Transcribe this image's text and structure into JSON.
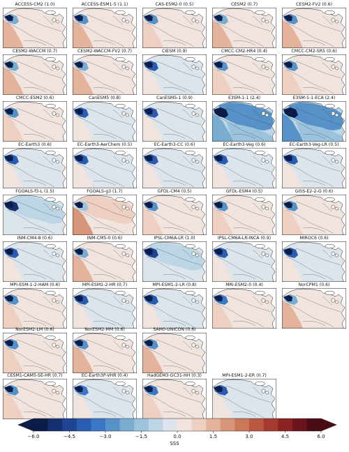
{
  "chart_data": {
    "type": "map-grid",
    "field": "SSS",
    "colorbar": {
      "label": "SSS",
      "range": [
        -6.0,
        6.0
      ],
      "step": 0.75,
      "ticks": [
        "−6.0",
        "−4.5",
        "−3.0",
        "−1.5",
        "0.0",
        "1.5",
        "3.0",
        "4.5",
        "6.0"
      ],
      "extend": "both",
      "colors": [
        "#0b1c48",
        "#16306f",
        "#1f4592",
        "#2a5db2",
        "#3a77c5",
        "#5692c8",
        "#78acd1",
        "#9bc4dc",
        "#bdd6e5",
        "#dce5ec",
        "#f1e4df",
        "#eed0c2",
        "#e3b39c",
        "#d7957a",
        "#cb7758",
        "#bb5740",
        "#a63a2e",
        "#8b2325",
        "#6b141c",
        "#4a0c14"
      ]
    },
    "panels": [
      {
        "title": "ACCESS-CM2 (1.0)",
        "bias": 0.5
      },
      {
        "title": "ACCESS-ESM1-5 (1.1)",
        "bias": 0.35
      },
      {
        "title": "CAS-ESM2-0 (0.5)",
        "bias": 0.1
      },
      {
        "title": "CESM2 (0.7)",
        "bias": 0.4
      },
      {
        "title": "CESM2-FV2 (0.6)",
        "bias": 0.35
      },
      {
        "title": "CESM2-WACCM (0.7)",
        "bias": 0.45
      },
      {
        "title": "CESM2-WACCM-FV2 (0.7)",
        "bias": 0.5
      },
      {
        "title": "CIESM (0.9)",
        "bias": -0.4
      },
      {
        "title": "CMCC-CM2-HR4 (0.4)",
        "bias": 0.2
      },
      {
        "title": "CMCC-CM2-SR5 (0.6)",
        "bias": 0.15
      },
      {
        "title": "CMCC-ESM2 (0.6)",
        "bias": 0.25
      },
      {
        "title": "CanESM5 (0.8)",
        "bias": -0.2
      },
      {
        "title": "CanESM5-1 (0.9)",
        "bias": -0.35
      },
      {
        "title": "E3SM-1-1 (2.4)",
        "bias": -2.2
      },
      {
        "title": "E3SM-1-1-ECA (2.4)",
        "bias": -2.3
      },
      {
        "title": "EC-Earth3 (0.6)",
        "bias": -0.4
      },
      {
        "title": "EC-Earth3-AerChem (0.5)",
        "bias": -0.4
      },
      {
        "title": "EC-Earth3-CC (0.6)",
        "bias": -0.4
      },
      {
        "title": "EC-Earth3-Veg (0.6)",
        "bias": -0.45
      },
      {
        "title": "EC-Earth3-Veg-LR (0.5)",
        "bias": -0.45
      },
      {
        "title": "FGOALS-f3-L (1.5)",
        "bias": -0.9
      },
      {
        "title": "FGOALS-g3 (1.7)",
        "bias": 0.8
      },
      {
        "title": "GFDL-CM4 (0.5)",
        "bias": 0.15
      },
      {
        "title": "GFDL-ESM4 (0.5)",
        "bias": 0.25
      },
      {
        "title": "GISS-E2-2-G (0.6)",
        "bias": 0.2
      },
      {
        "title": "INM-CM4-8 (0.6)",
        "bias": -0.5
      },
      {
        "title": "INM-CM5-0 (0.6)",
        "bias": 0.4
      },
      {
        "title": "IPSL-CM6A-LR (1.0)",
        "bias": -0.6
      },
      {
        "title": "IPSL-CM6A-LR-INCA (0.9)",
        "bias": -0.5
      },
      {
        "title": "MIROC6 (0.6)",
        "bias": -0.25
      },
      {
        "title": "MPI-ESM-1-2-HAM (0.6)",
        "bias": 0.2
      },
      {
        "title": "MPI-ESM1-2-HR (0.7)",
        "bias": -0.3
      },
      {
        "title": "MPI-ESM1-2-LR (0.8)",
        "bias": -0.4
      },
      {
        "title": "MRI-ESM2-0 (0.4)",
        "bias": 0.05
      },
      {
        "title": "NorCPM1 (0.6)",
        "bias": 0.5
      },
      {
        "title": "NorESM2-LM (0.6)",
        "bias": 0.25
      },
      {
        "title": "NorESM2-MM (0.6)",
        "bias": 0.3
      },
      {
        "title": "SAM0-UNICON (0.6)",
        "bias": 0.3
      },
      {
        "title": "CESM1-CAM5-SE-HR (0.7)",
        "bias": 0.25
      },
      {
        "title": "EC-Earth3P-VHR (0.4)",
        "bias": -0.15
      },
      {
        "title": "HadGEM3-GC31-HH (0.3)",
        "bias": 0.05
      },
      {
        "title": "MPI-ESM1-2-ER (0.7)",
        "bias": -0.4
      }
    ]
  }
}
